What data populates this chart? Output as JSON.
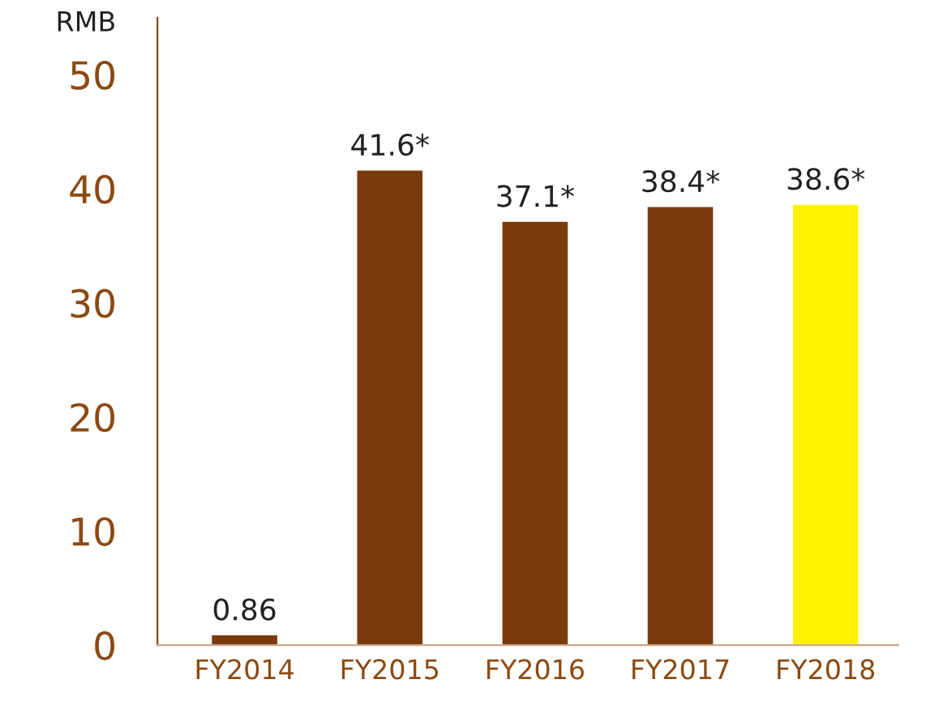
{
  "chart_data": {
    "type": "bar",
    "ylabel": "RMB",
    "categories": [
      "FY2014",
      "FY2015",
      "FY2016",
      "FY2017",
      "FY2018"
    ],
    "values": [
      0.86,
      41.6,
      37.1,
      38.4,
      38.6
    ],
    "value_labels": [
      "0.86",
      "41.6*",
      "37.1*",
      "38.4*",
      "38.6*"
    ],
    "colors": [
      "#7a3b0c",
      "#7a3b0c",
      "#7a3b0c",
      "#7a3b0c",
      "#fff200"
    ],
    "ylim": [
      0,
      55
    ],
    "yticks": [
      0,
      10,
      20,
      30,
      40,
      50
    ],
    "grid": false,
    "legend": false
  }
}
